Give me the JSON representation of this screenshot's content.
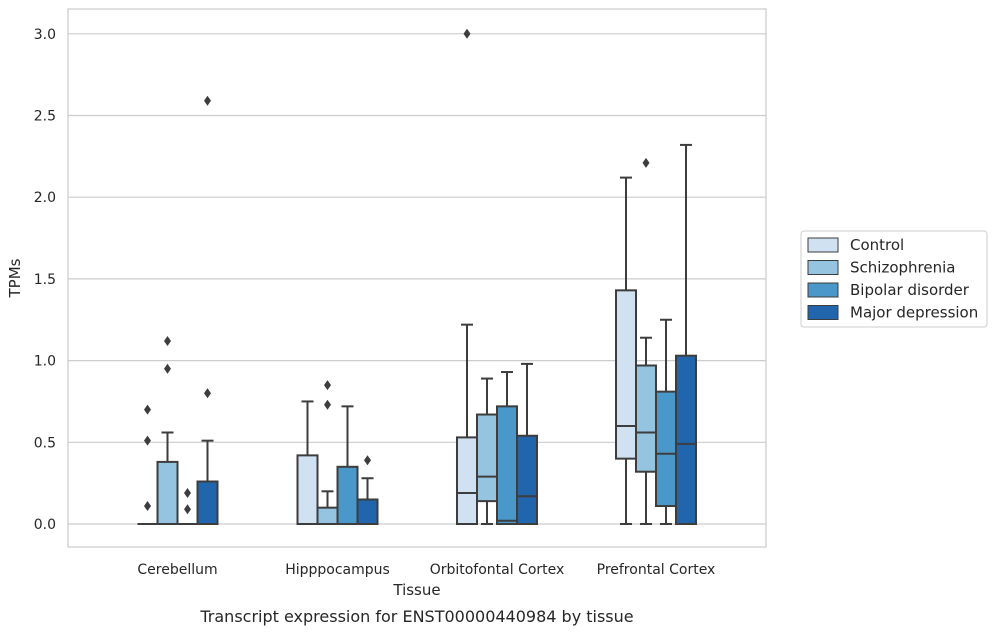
{
  "chart_data": {
    "type": "box",
    "title": "",
    "caption": "Transcript expression for ENST00000440984 by tissue",
    "xlabel": "Tissue",
    "ylabel": "TPMs",
    "ylim": [
      -0.15,
      3.15
    ],
    "yticks": [
      "0.0",
      "0.5",
      "1.0",
      "1.5",
      "2.0",
      "2.5",
      "3.0"
    ],
    "grid": "horizontal",
    "legend_placement": "right",
    "categories": [
      "Cerebellum",
      "Hipppocampus",
      "Orbitofontal Cortex",
      "Prefrontal Cortex"
    ],
    "series": [
      {
        "name": "Control",
        "color": "#d0e1f2",
        "boxes": [
          {
            "min": 0,
            "q1": 0,
            "median": 0,
            "q3": 0,
            "max": 0,
            "outliers": [
              0.11,
              0.51,
              0.7
            ]
          },
          {
            "min": 0,
            "q1": 0,
            "median": 0,
            "q3": 0.42,
            "max": 0.75,
            "outliers": []
          },
          {
            "min": 0,
            "q1": 0,
            "median": 0.19,
            "q3": 0.53,
            "max": 1.22,
            "outliers": [
              3.0
            ]
          },
          {
            "min": 0,
            "q1": 0.4,
            "median": 0.6,
            "q3": 1.43,
            "max": 2.12,
            "outliers": []
          }
        ]
      },
      {
        "name": "Schizophrenia",
        "color": "#94c4df",
        "boxes": [
          {
            "min": 0,
            "q1": 0,
            "median": 0,
            "q3": 0.38,
            "max": 0.56,
            "outliers": [
              0.95,
              1.12
            ]
          },
          {
            "min": 0,
            "q1": 0,
            "median": 0,
            "q3": 0.1,
            "max": 0.2,
            "outliers": [
              0.73,
              0.85
            ]
          },
          {
            "min": 0,
            "q1": 0.14,
            "median": 0.29,
            "q3": 0.67,
            "max": 0.89,
            "outliers": []
          },
          {
            "min": 0,
            "q1": 0.32,
            "median": 0.56,
            "q3": 0.97,
            "max": 1.14,
            "outliers": [
              2.21
            ]
          }
        ]
      },
      {
        "name": "Bipolar disorder",
        "color": "#4a98c9",
        "boxes": [
          {
            "min": 0,
            "q1": 0,
            "median": 0,
            "q3": 0,
            "max": 0,
            "outliers": [
              0.09,
              0.19
            ]
          },
          {
            "min": 0,
            "q1": 0,
            "median": 0,
            "q3": 0.35,
            "max": 0.72,
            "outliers": []
          },
          {
            "min": 0,
            "q1": 0,
            "median": 0.02,
            "q3": 0.72,
            "max": 0.93,
            "outliers": []
          },
          {
            "min": 0,
            "q1": 0.11,
            "median": 0.43,
            "q3": 0.81,
            "max": 1.25,
            "outliers": []
          }
        ]
      },
      {
        "name": "Major depression",
        "color": "#2166ac",
        "boxes": [
          {
            "min": 0,
            "q1": 0,
            "median": 0,
            "q3": 0.26,
            "max": 0.51,
            "outliers": [
              0.8,
              2.59
            ]
          },
          {
            "min": 0,
            "q1": 0,
            "median": 0,
            "q3": 0.15,
            "max": 0.28,
            "outliers": [
              0.39
            ]
          },
          {
            "min": 0,
            "q1": 0,
            "median": 0.17,
            "q3": 0.54,
            "max": 0.98,
            "outliers": []
          },
          {
            "min": 0,
            "q1": 0,
            "median": 0.49,
            "q3": 1.03,
            "max": 2.32,
            "outliers": []
          }
        ]
      }
    ]
  }
}
